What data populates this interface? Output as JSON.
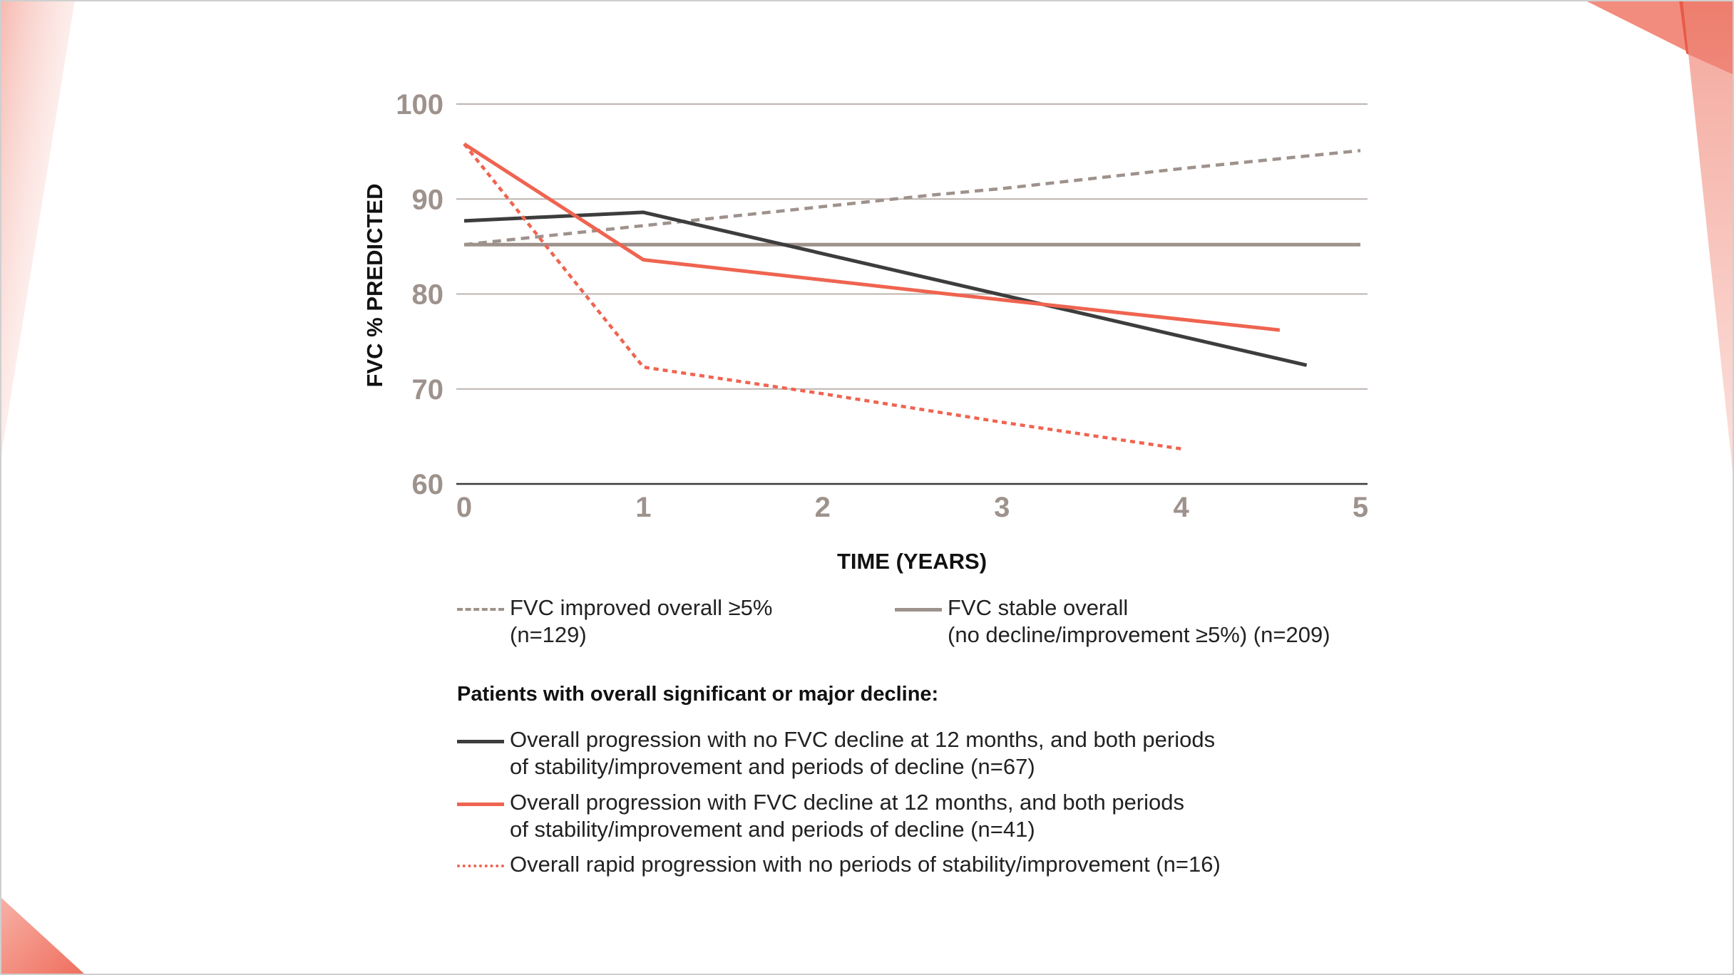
{
  "chart_data": {
    "type": "line",
    "title": "",
    "xlabel": "TIME (YEARS)",
    "ylabel": "FVC % PREDICTED",
    "xlim": [
      0,
      5
    ],
    "ylim": [
      60,
      100
    ],
    "x_ticks": [
      "0",
      "1",
      "2",
      "3",
      "4",
      "5"
    ],
    "y_ticks": [
      "60",
      "70",
      "80",
      "90",
      "100"
    ],
    "grid": true,
    "series": [
      {
        "key": "improved",
        "name": "FVC improved overall ≥5%",
        "name_line2": "(n=129)",
        "color": "#9e928c",
        "style": "dashed",
        "points": [
          [
            0,
            85.2
          ],
          [
            1,
            87.2
          ],
          [
            2,
            89.2
          ],
          [
            2.6,
            90.4
          ],
          [
            3,
            91.1
          ],
          [
            4,
            93.2
          ],
          [
            5,
            95.1
          ]
        ]
      },
      {
        "key": "stable",
        "name": "FVC stable overall",
        "name_line2": "(no decline/improvement ≥5%) (n=209)",
        "color": "#9e928c",
        "style": "solid",
        "points": [
          [
            0,
            85.2
          ],
          [
            5,
            85.2
          ]
        ]
      },
      {
        "key": "no_decline_12m",
        "name": "Overall progression with no FVC decline at 12 months, and both periods",
        "name_line2": "of stability/improvement and periods of decline (n=67)",
        "color": "#3d3d3d",
        "style": "solid",
        "points": [
          [
            0,
            87.7
          ],
          [
            1,
            88.6
          ],
          [
            4.7,
            72.5
          ]
        ]
      },
      {
        "key": "decline_12m",
        "name": "Overall progression with FVC decline at 12 months, and both periods",
        "name_line2": "of stability/improvement and periods of decline (n=41)",
        "color": "#ef6450",
        "style": "solid",
        "points": [
          [
            0,
            95.8
          ],
          [
            1,
            83.6
          ],
          [
            2.7,
            80.0
          ],
          [
            4.55,
            76.2
          ]
        ]
      },
      {
        "key": "rapid",
        "name": "Overall rapid progression with no periods of stability/improvement (n=16)",
        "name_line2": "",
        "color": "#ef6450",
        "style": "dotted",
        "points": [
          [
            0,
            95.8
          ],
          [
            1,
            72.3
          ],
          [
            2,
            69.5
          ],
          [
            3,
            66.5
          ],
          [
            4,
            63.7
          ]
        ]
      }
    ]
  },
  "legend": {
    "decline_heading": "Patients with overall significant or major decline:"
  },
  "colors": {
    "accent": "#ef6450",
    "grid": "#bdb4b0",
    "tick_text": "#9e928c"
  }
}
